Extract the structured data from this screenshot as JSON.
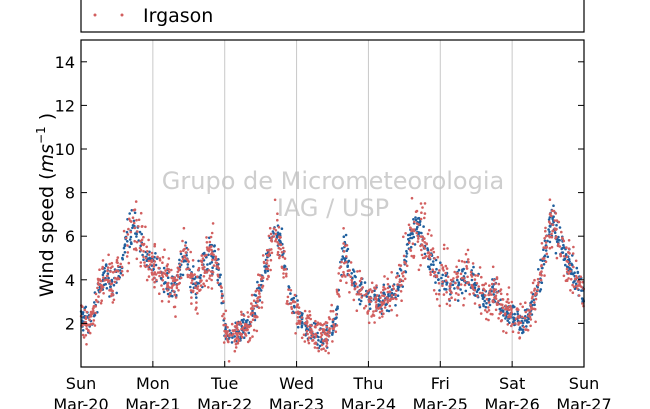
{
  "chart_data": {
    "type": "scatter",
    "xlabel": "",
    "ylabel": "Wind speed (ms⁻¹ )",
    "ylabel_parts": {
      "prefix": "Wind speed (",
      "unit_base": "ms",
      "unit_exp": "−1",
      "suffix": " )"
    },
    "ylim": [
      0,
      15
    ],
    "yticks": [
      "2",
      "4",
      "6",
      "8",
      "10",
      "12",
      "14"
    ],
    "xlim": [
      "2016-03-20",
      "2016-03-27"
    ],
    "xticks": [
      {
        "day": "Sun",
        "date": "Mar-20"
      },
      {
        "day": "Mon",
        "date": "Mar-21"
      },
      {
        "day": "Tue",
        "date": "Mar-22"
      },
      {
        "day": "Wed",
        "date": "Mar-23"
      },
      {
        "day": "Thu",
        "date": "Mar-24"
      },
      {
        "day": "Fri",
        "date": "Mar-25"
      },
      {
        "day": "Sat",
        "date": "Mar-26"
      },
      {
        "day": "Sun",
        "date": "Mar-27"
      }
    ],
    "grid": {
      "vertical": true,
      "horizontal": false
    },
    "legend": {
      "placement": "top",
      "entries": [
        "Irgason"
      ]
    },
    "series": [
      {
        "name": "",
        "color": "#1f5f9e",
        "daily_mean_wind_speed": [
          2.4,
          4.5,
          1.8,
          1.6,
          3.2,
          4.3,
          2.9,
          3.0
        ]
      },
      {
        "name": "Irgason",
        "color": "#d25f5f",
        "daily_mean_wind_speed": [
          2.3,
          4.3,
          1.7,
          1.5,
          3.0,
          4.0,
          2.7,
          2.8
        ]
      }
    ],
    "profile": [
      [
        0.0,
        2.4
      ],
      [
        0.05,
        2.2
      ],
      [
        0.1,
        2.0
      ],
      [
        0.15,
        1.9
      ],
      [
        0.2,
        2.8
      ],
      [
        0.25,
        3.5
      ],
      [
        0.3,
        4.0
      ],
      [
        0.35,
        4.2
      ],
      [
        0.45,
        3.8
      ],
      [
        0.55,
        4.5
      ],
      [
        0.65,
        6.0
      ],
      [
        0.75,
        6.5
      ],
      [
        0.8,
        6.2
      ],
      [
        0.9,
        5.0
      ],
      [
        1.0,
        4.6
      ],
      [
        1.1,
        4.2
      ],
      [
        1.2,
        3.8
      ],
      [
        1.3,
        3.6
      ],
      [
        1.4,
        4.5
      ],
      [
        1.45,
        5.5
      ],
      [
        1.5,
        4.2
      ],
      [
        1.6,
        3.8
      ],
      [
        1.7,
        4.4
      ],
      [
        1.75,
        5.0
      ],
      [
        1.85,
        5.2
      ],
      [
        1.95,
        4.0
      ],
      [
        2.0,
        1.5
      ],
      [
        2.05,
        1.2
      ],
      [
        2.15,
        1.6
      ],
      [
        2.25,
        1.8
      ],
      [
        2.35,
        2.0
      ],
      [
        2.45,
        3.0
      ],
      [
        2.55,
        4.5
      ],
      [
        2.65,
        5.5
      ],
      [
        2.7,
        7.0
      ],
      [
        2.75,
        6.0
      ],
      [
        2.82,
        5.0
      ],
      [
        2.9,
        3.2
      ],
      [
        3.0,
        2.5
      ],
      [
        3.1,
        2.0
      ],
      [
        3.2,
        1.6
      ],
      [
        3.3,
        1.3
      ],
      [
        3.4,
        1.4
      ],
      [
        3.5,
        1.7
      ],
      [
        3.55,
        2.2
      ],
      [
        3.6,
        4.0
      ],
      [
        3.65,
        5.5
      ],
      [
        3.7,
        5.0
      ],
      [
        3.8,
        3.8
      ],
      [
        3.9,
        3.5
      ],
      [
        4.0,
        3.2
      ],
      [
        4.1,
        3.0
      ],
      [
        4.2,
        3.1
      ],
      [
        4.3,
        3.3
      ],
      [
        4.4,
        3.6
      ],
      [
        4.5,
        4.5
      ],
      [
        4.55,
        5.5
      ],
      [
        4.65,
        6.5
      ],
      [
        4.75,
        6.0
      ],
      [
        4.85,
        5.0
      ],
      [
        4.95,
        4.2
      ],
      [
        5.05,
        4.0
      ],
      [
        5.15,
        3.8
      ],
      [
        5.25,
        3.9
      ],
      [
        5.35,
        4.3
      ],
      [
        5.45,
        4.0
      ],
      [
        5.55,
        3.4
      ],
      [
        5.65,
        3.0
      ],
      [
        5.75,
        3.6
      ],
      [
        5.85,
        2.8
      ],
      [
        5.95,
        2.5
      ],
      [
        6.05,
        2.3
      ],
      [
        6.15,
        2.0
      ],
      [
        6.25,
        2.6
      ],
      [
        6.35,
        3.6
      ],
      [
        6.45,
        5.2
      ],
      [
        6.55,
        6.8
      ],
      [
        6.65,
        6.0
      ],
      [
        6.75,
        5.0
      ],
      [
        6.85,
        4.2
      ],
      [
        6.95,
        3.6
      ],
      [
        7.0,
        3.3
      ]
    ],
    "watermark": [
      "Grupo de Micrometeorologia",
      "IAG / USP"
    ]
  }
}
